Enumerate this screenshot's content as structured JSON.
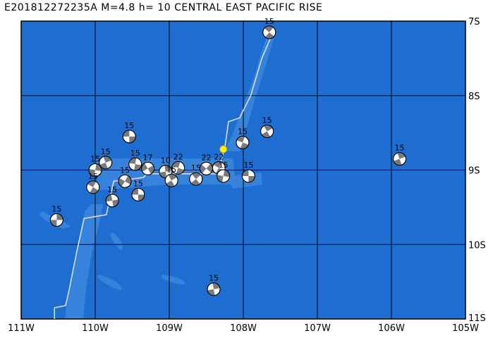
{
  "title": "E201812272235A M=4.8 h= 10 CENTRAL EAST PACIFIC RISE",
  "extent": {
    "lon_min": -111,
    "lon_max": -105,
    "lat_min": -11,
    "lat_max": -7
  },
  "x_ticks": [
    {
      "lon": -111,
      "label": "111W"
    },
    {
      "lon": -110,
      "label": "110W"
    },
    {
      "lon": -109,
      "label": "109W"
    },
    {
      "lon": -108,
      "label": "108W"
    },
    {
      "lon": -107,
      "label": "107W"
    },
    {
      "lon": -106,
      "label": "106W"
    },
    {
      "lon": -105,
      "label": "105W"
    }
  ],
  "y_ticks": [
    {
      "lat": -7,
      "label": "7S"
    },
    {
      "lat": -8,
      "label": "8S"
    },
    {
      "lat": -9,
      "label": "9S"
    },
    {
      "lat": -10,
      "label": "10S"
    },
    {
      "lat": -11,
      "label": "11S"
    }
  ],
  "colors": {
    "ocean": "#1e6ed2",
    "shallow": "#3c86dc",
    "grid": "#000000",
    "ridge": "#dcdcdc",
    "beach_dark": "#7a7a7a",
    "epicenter": "#ffee00"
  },
  "ridge_line": [
    [
      -107.6,
      -7.15
    ],
    [
      -107.75,
      -7.5
    ],
    [
      -107.9,
      -8.0
    ],
    [
      -108.05,
      -8.3
    ],
    [
      -108.2,
      -8.35
    ],
    [
      -108.25,
      -8.7
    ],
    [
      -108.35,
      -9.05
    ],
    [
      -109.3,
      -9.05
    ],
    [
      -109.35,
      -9.1
    ],
    [
      -109.75,
      -9.15
    ],
    [
      -109.85,
      -9.6
    ],
    [
      -110.15,
      -9.65
    ],
    [
      -110.25,
      -10.1
    ],
    [
      -110.35,
      -10.6
    ],
    [
      -110.4,
      -10.82
    ],
    [
      -110.55,
      -10.85
    ],
    [
      -110.55,
      -11.0
    ]
  ],
  "epicenter": {
    "lon": -108.27,
    "lat": -8.72
  },
  "mechanisms": [
    {
      "lon": -107.65,
      "lat": -7.15,
      "depth": "15",
      "rot": 40
    },
    {
      "lon": -107.68,
      "lat": -8.48,
      "depth": "15",
      "rot": 60
    },
    {
      "lon": -108.01,
      "lat": -8.63,
      "depth": "15",
      "rot": 20
    },
    {
      "lon": -105.89,
      "lat": -8.85,
      "depth": "15",
      "rot": 70
    },
    {
      "lon": -107.93,
      "lat": -9.08,
      "depth": "15",
      "rot": 0
    },
    {
      "lon": -110.52,
      "lat": -9.67,
      "depth": "15",
      "rot": 90
    },
    {
      "lon": -108.4,
      "lat": -10.6,
      "depth": "15",
      "rot": 80
    },
    {
      "lon": -109.54,
      "lat": -8.55,
      "depth": "15",
      "rot": 0
    },
    {
      "lon": -108.33,
      "lat": -8.97,
      "depth": "22",
      "rot": 30
    },
    {
      "lon": -108.5,
      "lat": -8.98,
      "depth": "22",
      "rot": 130
    },
    {
      "lon": -108.88,
      "lat": -8.97,
      "depth": "22",
      "rot": 200
    },
    {
      "lon": -109.05,
      "lat": -9.02,
      "depth": "10",
      "rot": 80
    },
    {
      "lon": -109.29,
      "lat": -8.98,
      "depth": "17",
      "rot": 150
    },
    {
      "lon": -109.46,
      "lat": -8.92,
      "depth": "15",
      "rot": 10
    },
    {
      "lon": -109.86,
      "lat": -8.9,
      "depth": "15",
      "rot": 250
    },
    {
      "lon": -110.0,
      "lat": -9.0,
      "depth": "15",
      "rot": 100
    },
    {
      "lon": -109.42,
      "lat": -9.33,
      "depth": "15",
      "rot": 0
    },
    {
      "lon": -109.77,
      "lat": -9.41,
      "depth": "15",
      "rot": 170
    },
    {
      "lon": -110.03,
      "lat": -9.23,
      "depth": "15",
      "rot": 210
    },
    {
      "lon": -109.6,
      "lat": -9.15,
      "depth": "15",
      "rot": 300
    },
    {
      "lon": -108.97,
      "lat": -9.14,
      "depth": "15",
      "rot": 60
    },
    {
      "lon": -108.64,
      "lat": -9.12,
      "depth": "15",
      "rot": 230
    },
    {
      "lon": -108.27,
      "lat": -9.08,
      "depth": "15",
      "rot": 100
    }
  ]
}
